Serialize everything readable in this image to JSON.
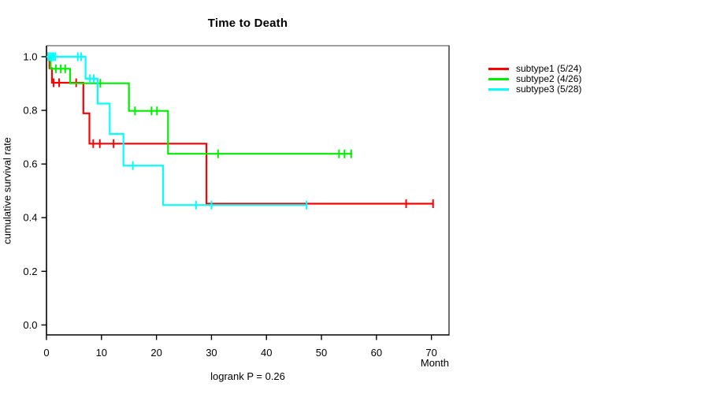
{
  "chart_data": {
    "type": "line",
    "subtype": "kaplan-meier-step-survival",
    "title": "Time to Death",
    "xlabel": "Month",
    "ylabel": "cumulative survival rate",
    "annotation": "logrank P = 0.26",
    "grid": false,
    "legend_position": "right-outside",
    "xlim": [
      0,
      73.2
    ],
    "ylim": [
      -0.037,
      1.041
    ],
    "x_ticks": [
      0,
      10,
      20,
      30,
      40,
      50,
      60,
      70
    ],
    "y_ticks": [
      "0.0",
      "0.2",
      "0.4",
      "0.6",
      "0.8",
      "1.0"
    ],
    "frame_colors": {
      "top": "#808080",
      "right": "#4a4a4a",
      "left": "#000000",
      "bottom": "#000000"
    },
    "text_color": "#000000",
    "series": [
      {
        "name": "subtype1",
        "label": "subtype1 (5/24)",
        "color": "#ff0000",
        "steps": [
          [
            0,
            1.0
          ],
          [
            0.55,
            1.0
          ],
          [
            0.55,
            0.957
          ],
          [
            1.0,
            0.957
          ],
          [
            1.0,
            0.903
          ],
          [
            6.7,
            0.903
          ],
          [
            6.7,
            0.789
          ],
          [
            7.8,
            0.789
          ],
          [
            7.8,
            0.676
          ],
          [
            29.1,
            0.676
          ],
          [
            29.1,
            0.452
          ],
          [
            70.3,
            0.452
          ]
        ],
        "censor_marks": [
          [
            0.35,
            1.0
          ],
          [
            1.3,
            0.903
          ],
          [
            2.3,
            0.903
          ],
          [
            5.4,
            0.903
          ],
          [
            8.5,
            0.676
          ],
          [
            9.7,
            0.676
          ],
          [
            12.2,
            0.676
          ],
          [
            65.4,
            0.452
          ],
          [
            70.3,
            0.452
          ]
        ]
      },
      {
        "name": "subtype2",
        "label": "subtype2 (4/26)",
        "color": "#00ee00",
        "steps": [
          [
            0,
            1.0
          ],
          [
            0.75,
            1.0
          ],
          [
            0.75,
            0.955
          ],
          [
            4.3,
            0.955
          ],
          [
            4.3,
            0.901
          ],
          [
            15.0,
            0.901
          ],
          [
            15.0,
            0.798
          ],
          [
            22.1,
            0.798
          ],
          [
            22.1,
            0.638
          ],
          [
            55.6,
            0.638
          ]
        ],
        "censor_marks": [
          [
            1.7,
            0.955
          ],
          [
            2.6,
            0.955
          ],
          [
            3.4,
            0.955
          ],
          [
            9.8,
            0.901
          ],
          [
            16.1,
            0.798
          ],
          [
            19.1,
            0.798
          ],
          [
            20.1,
            0.798
          ],
          [
            31.2,
            0.638
          ],
          [
            53.2,
            0.638
          ],
          [
            54.2,
            0.638
          ],
          [
            55.4,
            0.638
          ]
        ]
      },
      {
        "name": "subtype3",
        "label": "subtype3 (5/28)",
        "color": "#00ffff",
        "steps": [
          [
            0,
            1.0
          ],
          [
            7.1,
            1.0
          ],
          [
            7.1,
            0.918
          ],
          [
            9.3,
            0.918
          ],
          [
            9.3,
            0.825
          ],
          [
            11.5,
            0.825
          ],
          [
            11.5,
            0.712
          ],
          [
            14.0,
            0.712
          ],
          [
            14.0,
            0.594
          ],
          [
            21.2,
            0.594
          ],
          [
            21.2,
            0.447
          ],
          [
            47.3,
            0.447
          ]
        ],
        "censor_marks": [
          [
            0.4,
            1.0
          ],
          [
            0.7,
            1.0
          ],
          [
            1.0,
            1.0
          ],
          [
            1.3,
            1.0
          ],
          [
            1.6,
            1.0
          ],
          [
            5.7,
            1.0
          ],
          [
            6.3,
            1.0
          ],
          [
            7.9,
            0.918
          ],
          [
            8.6,
            0.918
          ],
          [
            15.7,
            0.594
          ],
          [
            27.2,
            0.447
          ],
          [
            30.0,
            0.447
          ],
          [
            47.3,
            0.447
          ]
        ]
      }
    ]
  }
}
